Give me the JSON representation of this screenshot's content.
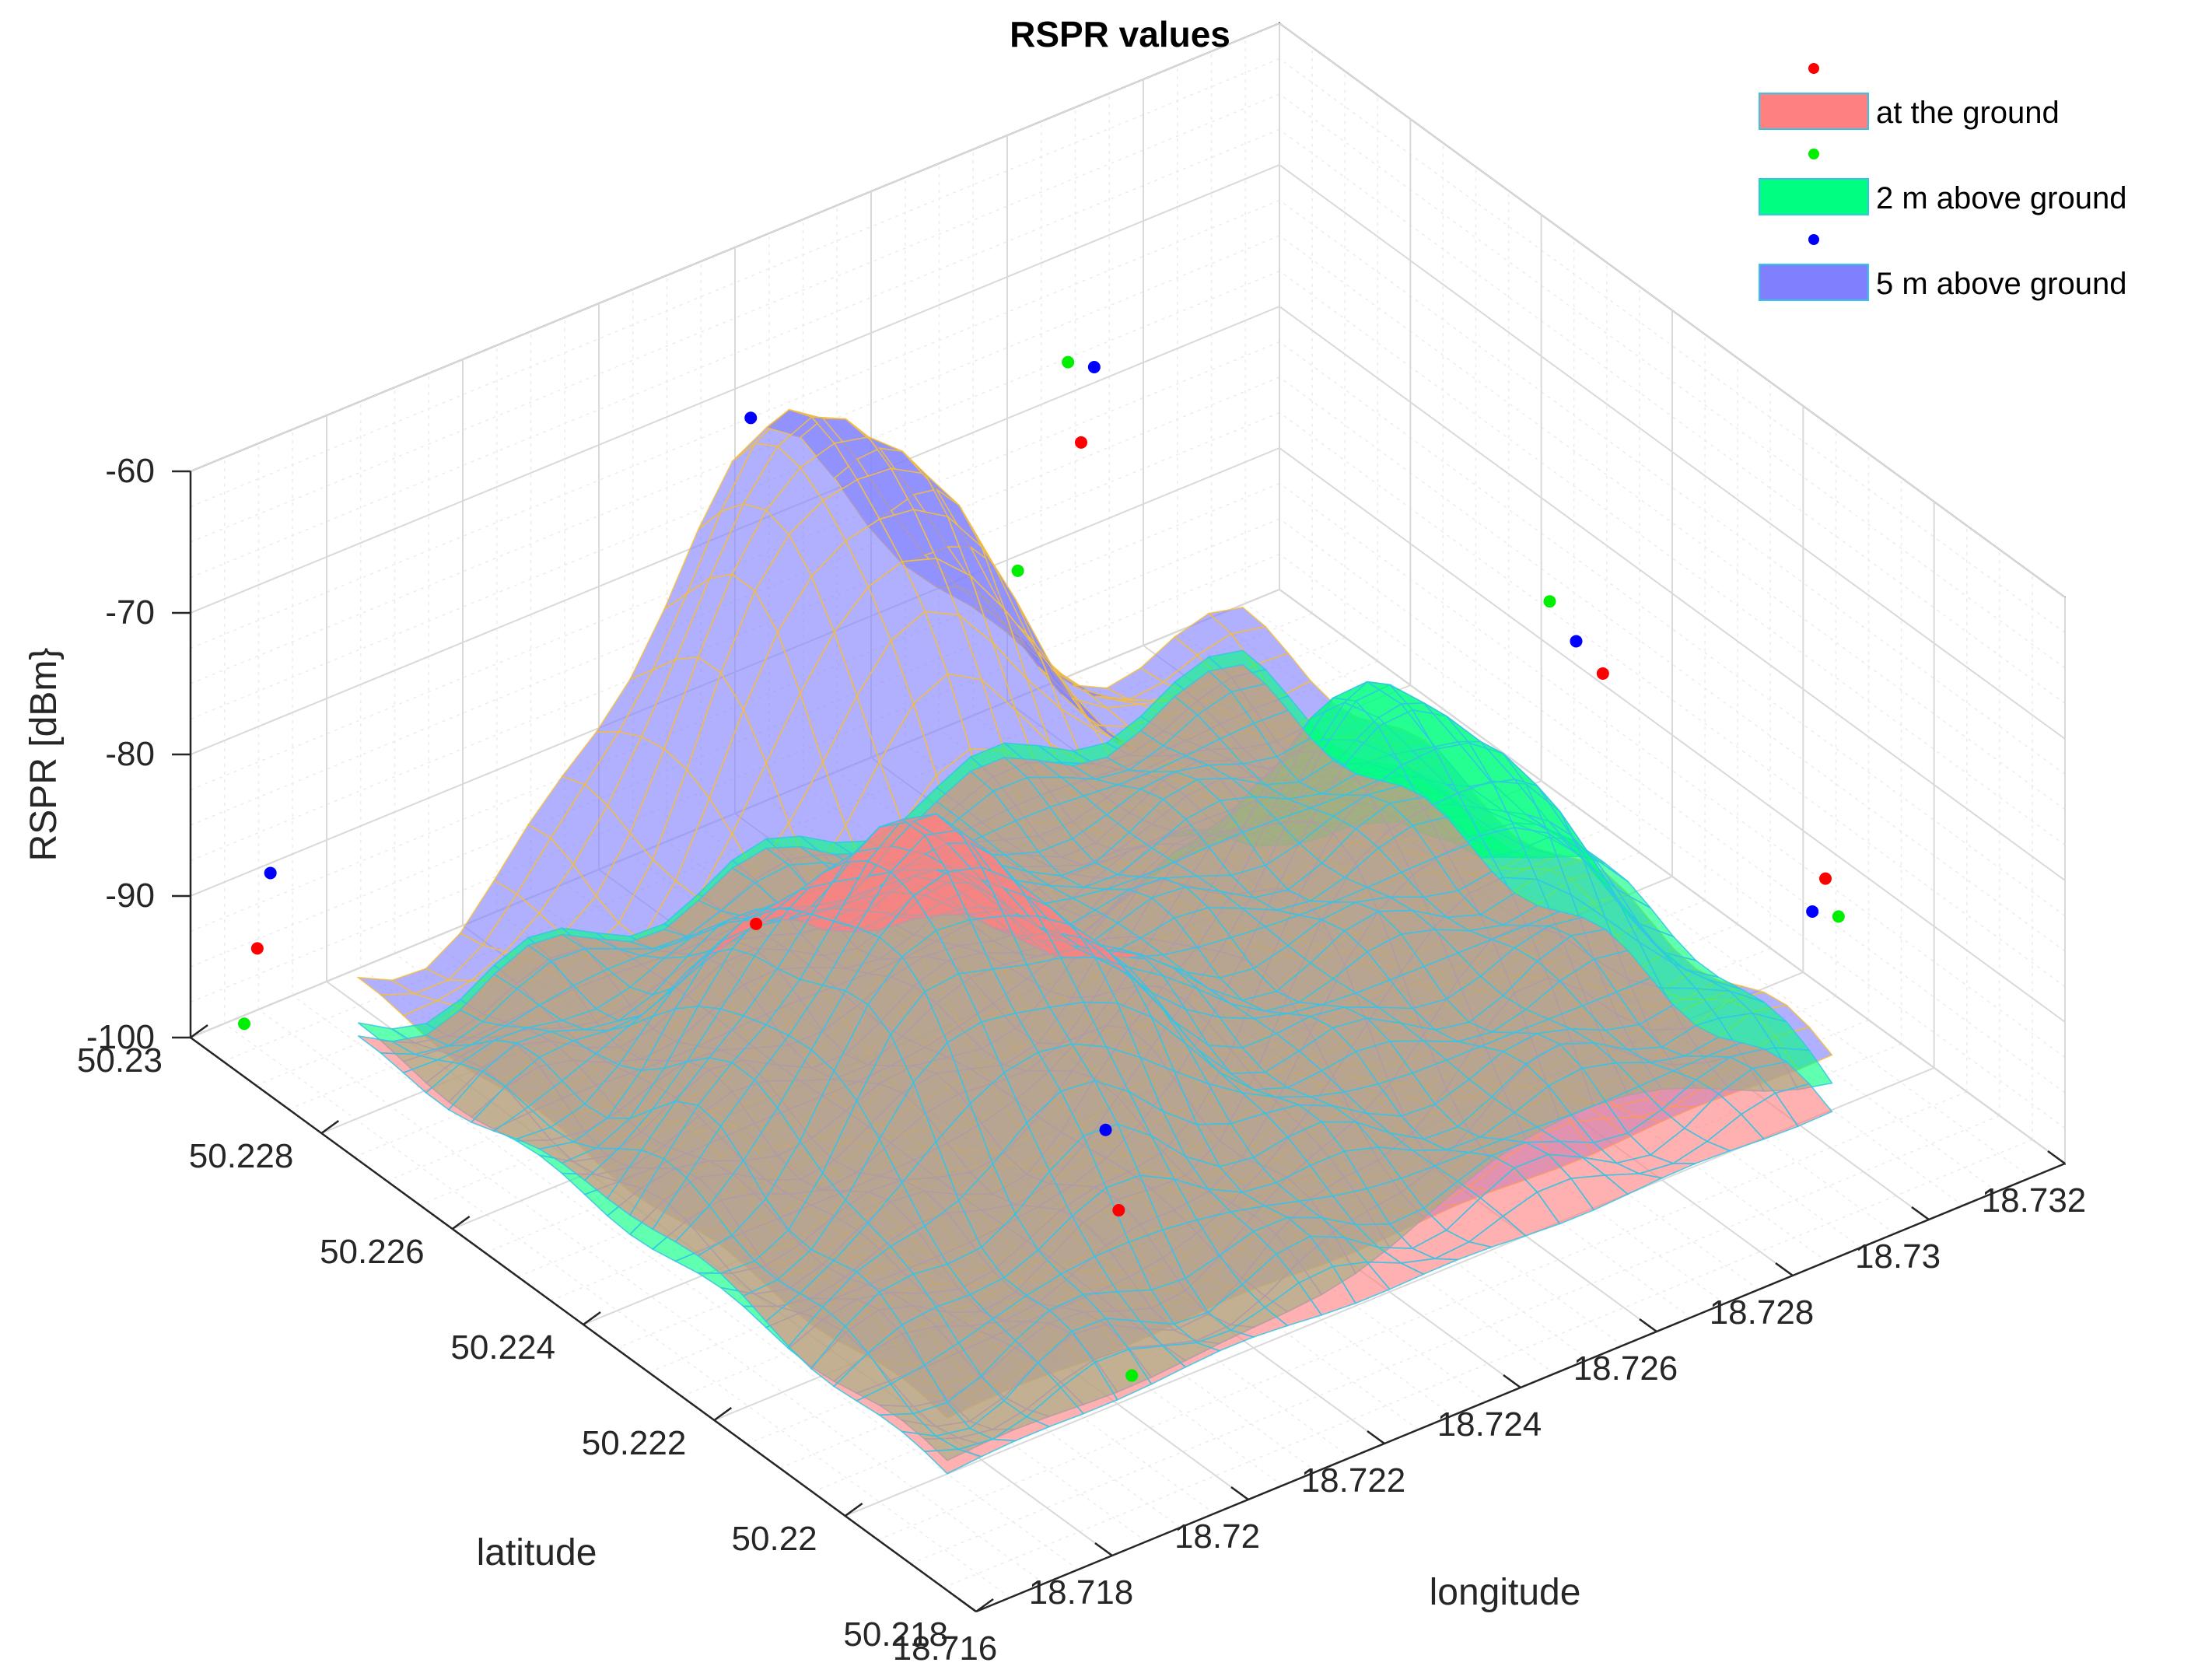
{
  "chart_data": {
    "type": "surface3d",
    "title": "RSPR values",
    "xlabel": "longitude",
    "ylabel": "latitude",
    "zlabel": "RSPR [dBm}",
    "xlim": [
      18.716,
      18.732
    ],
    "ylim": [
      50.218,
      50.23
    ],
    "zlim": [
      -100,
      -60
    ],
    "xticks": [
      "18.716",
      "18.718",
      "18.72",
      "18.722",
      "18.724",
      "18.726",
      "18.728",
      "18.73",
      "18.732"
    ],
    "yticks": [
      "50.218",
      "50.22",
      "50.222",
      "50.224",
      "50.226",
      "50.228",
      "50.23"
    ],
    "zticks": [
      "-100",
      "-90",
      "-80",
      "-70",
      "-60"
    ],
    "grid": true,
    "legend_position": "top-right",
    "series": [
      {
        "name": "at the ground",
        "color": "#ff8080",
        "peak": {
          "lon": 18.7215,
          "lat": 50.2245,
          "rspr": -79
        },
        "base": -100,
        "points": [
          {
            "lon": 18.7165,
            "lat": 50.2295,
            "rspr": -93
          },
          {
            "lon": 18.7205,
            "lat": 50.2205,
            "rspr": -89
          },
          {
            "lon": 18.7262,
            "lat": 50.227,
            "rspr": -68
          },
          {
            "lon": 18.7305,
            "lat": 50.2235,
            "rspr": -81
          },
          {
            "lon": 18.7305,
            "lat": 50.2201,
            "rspr": -84
          },
          {
            "lon": 18.7195,
            "lat": 50.225,
            "rspr": -82
          }
        ]
      },
      {
        "name": "2 m above ground",
        "color": "#00ff80",
        "peak": {
          "lon": 18.7268,
          "lat": 50.2228,
          "rspr": -74
        },
        "base": -99,
        "points": [
          {
            "lon": 18.7165,
            "lat": 50.2297,
            "rspr": -99
          },
          {
            "lon": 18.7205,
            "lat": 50.2203,
            "rspr": -100
          },
          {
            "lon": 18.7262,
            "lat": 50.2272,
            "rspr": -63
          },
          {
            "lon": 18.7302,
            "lat": 50.224,
            "rspr": -77
          },
          {
            "lon": 18.7305,
            "lat": 50.2199,
            "rspr": -86
          },
          {
            "lon": 18.7245,
            "lat": 50.2262,
            "rspr": -71
          }
        ]
      },
      {
        "name": "5 m above ground",
        "color": "#8080ff",
        "peak": {
          "lon": 18.7235,
          "lat": 50.228,
          "rspr": -65
        },
        "base": -96,
        "points": [
          {
            "lon": 18.7165,
            "lat": 50.2293,
            "rspr": -87
          },
          {
            "lon": 18.7205,
            "lat": 50.2207,
            "rspr": -84
          },
          {
            "lon": 18.7262,
            "lat": 50.2268,
            "rspr": -62
          },
          {
            "lon": 18.7303,
            "lat": 50.2237,
            "rspr": -79
          },
          {
            "lon": 18.7305,
            "lat": 50.2203,
            "rspr": -87
          },
          {
            "lon": 18.7225,
            "lat": 50.2282,
            "rspr": -63
          }
        ]
      }
    ]
  }
}
